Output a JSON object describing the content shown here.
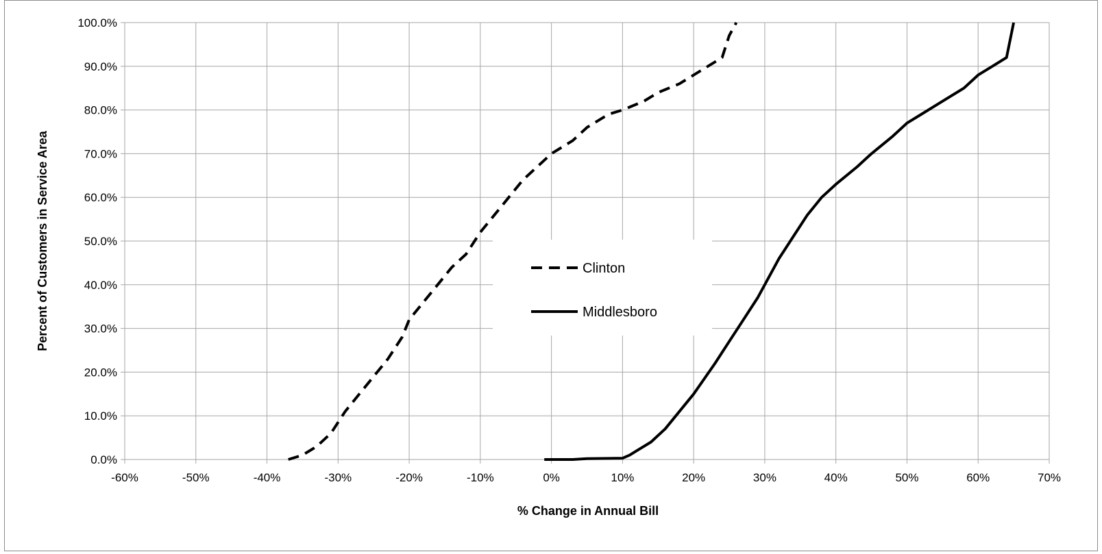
{
  "chart_data": {
    "type": "line",
    "title": "",
    "xlabel": "% Change in Annual Bill",
    "ylabel": "Percent of Customers in Service Area",
    "xlim": [
      -60,
      70
    ],
    "ylim": [
      0,
      100
    ],
    "x_ticks": [
      "-60%",
      "-50%",
      "-40%",
      "-30%",
      "-20%",
      "-10%",
      "0%",
      "10%",
      "20%",
      "30%",
      "40%",
      "50%",
      "60%",
      "70%"
    ],
    "y_ticks": [
      "0.0%",
      "10.0%",
      "20.0%",
      "30.0%",
      "40.0%",
      "50.0%",
      "60.0%",
      "70.0%",
      "80.0%",
      "90.0%",
      "100.0%"
    ],
    "grid": true,
    "legend_position": "center",
    "series": [
      {
        "name": "Clinton",
        "style": "dashed",
        "color": "#000000",
        "points": [
          [
            -37,
            0
          ],
          [
            -35,
            1
          ],
          [
            -33,
            3
          ],
          [
            -31,
            6
          ],
          [
            -29,
            11
          ],
          [
            -27,
            15
          ],
          [
            -25,
            19
          ],
          [
            -23,
            23
          ],
          [
            -21,
            28
          ],
          [
            -20,
            32
          ],
          [
            -18,
            36
          ],
          [
            -16,
            40
          ],
          [
            -14,
            44
          ],
          [
            -12,
            47
          ],
          [
            -10,
            52
          ],
          [
            -8,
            56
          ],
          [
            -6,
            60
          ],
          [
            -4,
            64
          ],
          [
            -2,
            67
          ],
          [
            0,
            70
          ],
          [
            3,
            73
          ],
          [
            5,
            76
          ],
          [
            8,
            79
          ],
          [
            10,
            80
          ],
          [
            13,
            82
          ],
          [
            15,
            84
          ],
          [
            18,
            86
          ],
          [
            21,
            89
          ],
          [
            24,
            92
          ],
          [
            25,
            97
          ],
          [
            26,
            100
          ]
        ]
      },
      {
        "name": "Middlesboro",
        "style": "solid",
        "color": "#000000",
        "points": [
          [
            -1,
            0
          ],
          [
            3,
            0
          ],
          [
            5,
            0.2
          ],
          [
            10,
            0.3
          ],
          [
            11,
            1
          ],
          [
            12,
            2
          ],
          [
            14,
            4
          ],
          [
            16,
            7
          ],
          [
            18,
            11
          ],
          [
            20,
            15
          ],
          [
            23,
            22
          ],
          [
            25,
            27
          ],
          [
            27,
            32
          ],
          [
            29,
            37
          ],
          [
            30,
            40
          ],
          [
            32,
            46
          ],
          [
            34,
            51
          ],
          [
            36,
            56
          ],
          [
            38,
            60
          ],
          [
            40,
            63
          ],
          [
            43,
            67
          ],
          [
            45,
            70
          ],
          [
            48,
            74
          ],
          [
            50,
            77
          ],
          [
            52,
            79
          ],
          [
            55,
            82
          ],
          [
            58,
            85
          ],
          [
            60,
            88
          ],
          [
            62,
            90
          ],
          [
            64,
            92
          ],
          [
            65,
            100
          ]
        ]
      }
    ]
  }
}
